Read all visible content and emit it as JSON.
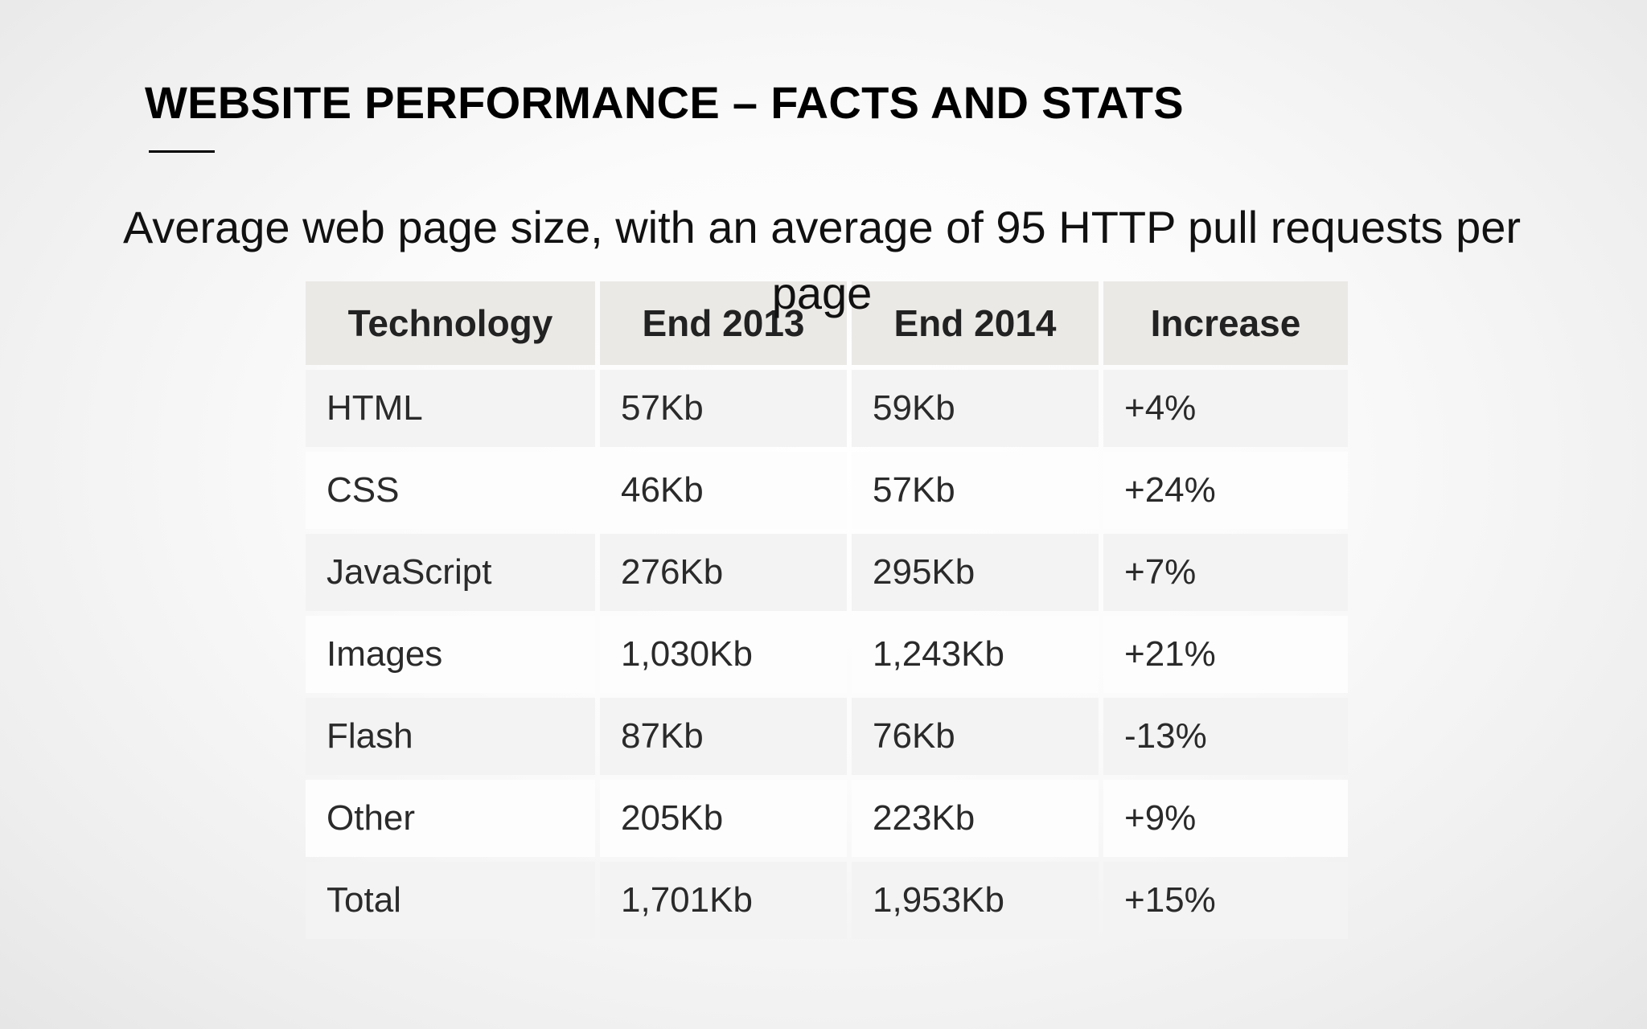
{
  "slide": {
    "title": "WEBSITE PERFORMANCE – FACTS AND STATS",
    "subtitle": "Average web page size, with an average of 95 HTTP pull requests per page"
  },
  "table": {
    "headers": [
      "Technology",
      "End 2013",
      "End 2014",
      "Increase"
    ],
    "rows": [
      [
        "HTML",
        "57Kb",
        "59Kb",
        "+4%"
      ],
      [
        "CSS",
        "46Kb",
        "57Kb",
        "+24%"
      ],
      [
        "JavaScript",
        "276Kb",
        "295Kb",
        "+7%"
      ],
      [
        "Images",
        "1,030Kb",
        "1,243Kb",
        "+21%"
      ],
      [
        "Flash",
        "87Kb",
        "76Kb",
        "-13%"
      ],
      [
        "Other",
        "205Kb",
        "223Kb",
        "+9%"
      ],
      [
        "Total",
        "1,701Kb",
        "1,953Kb",
        "+15%"
      ]
    ]
  },
  "colors": {
    "header_bg": "#ebe9e6",
    "row_shaded": "#f3f3f3",
    "row_light": "#fdfdfd",
    "title_text": "#000000"
  }
}
